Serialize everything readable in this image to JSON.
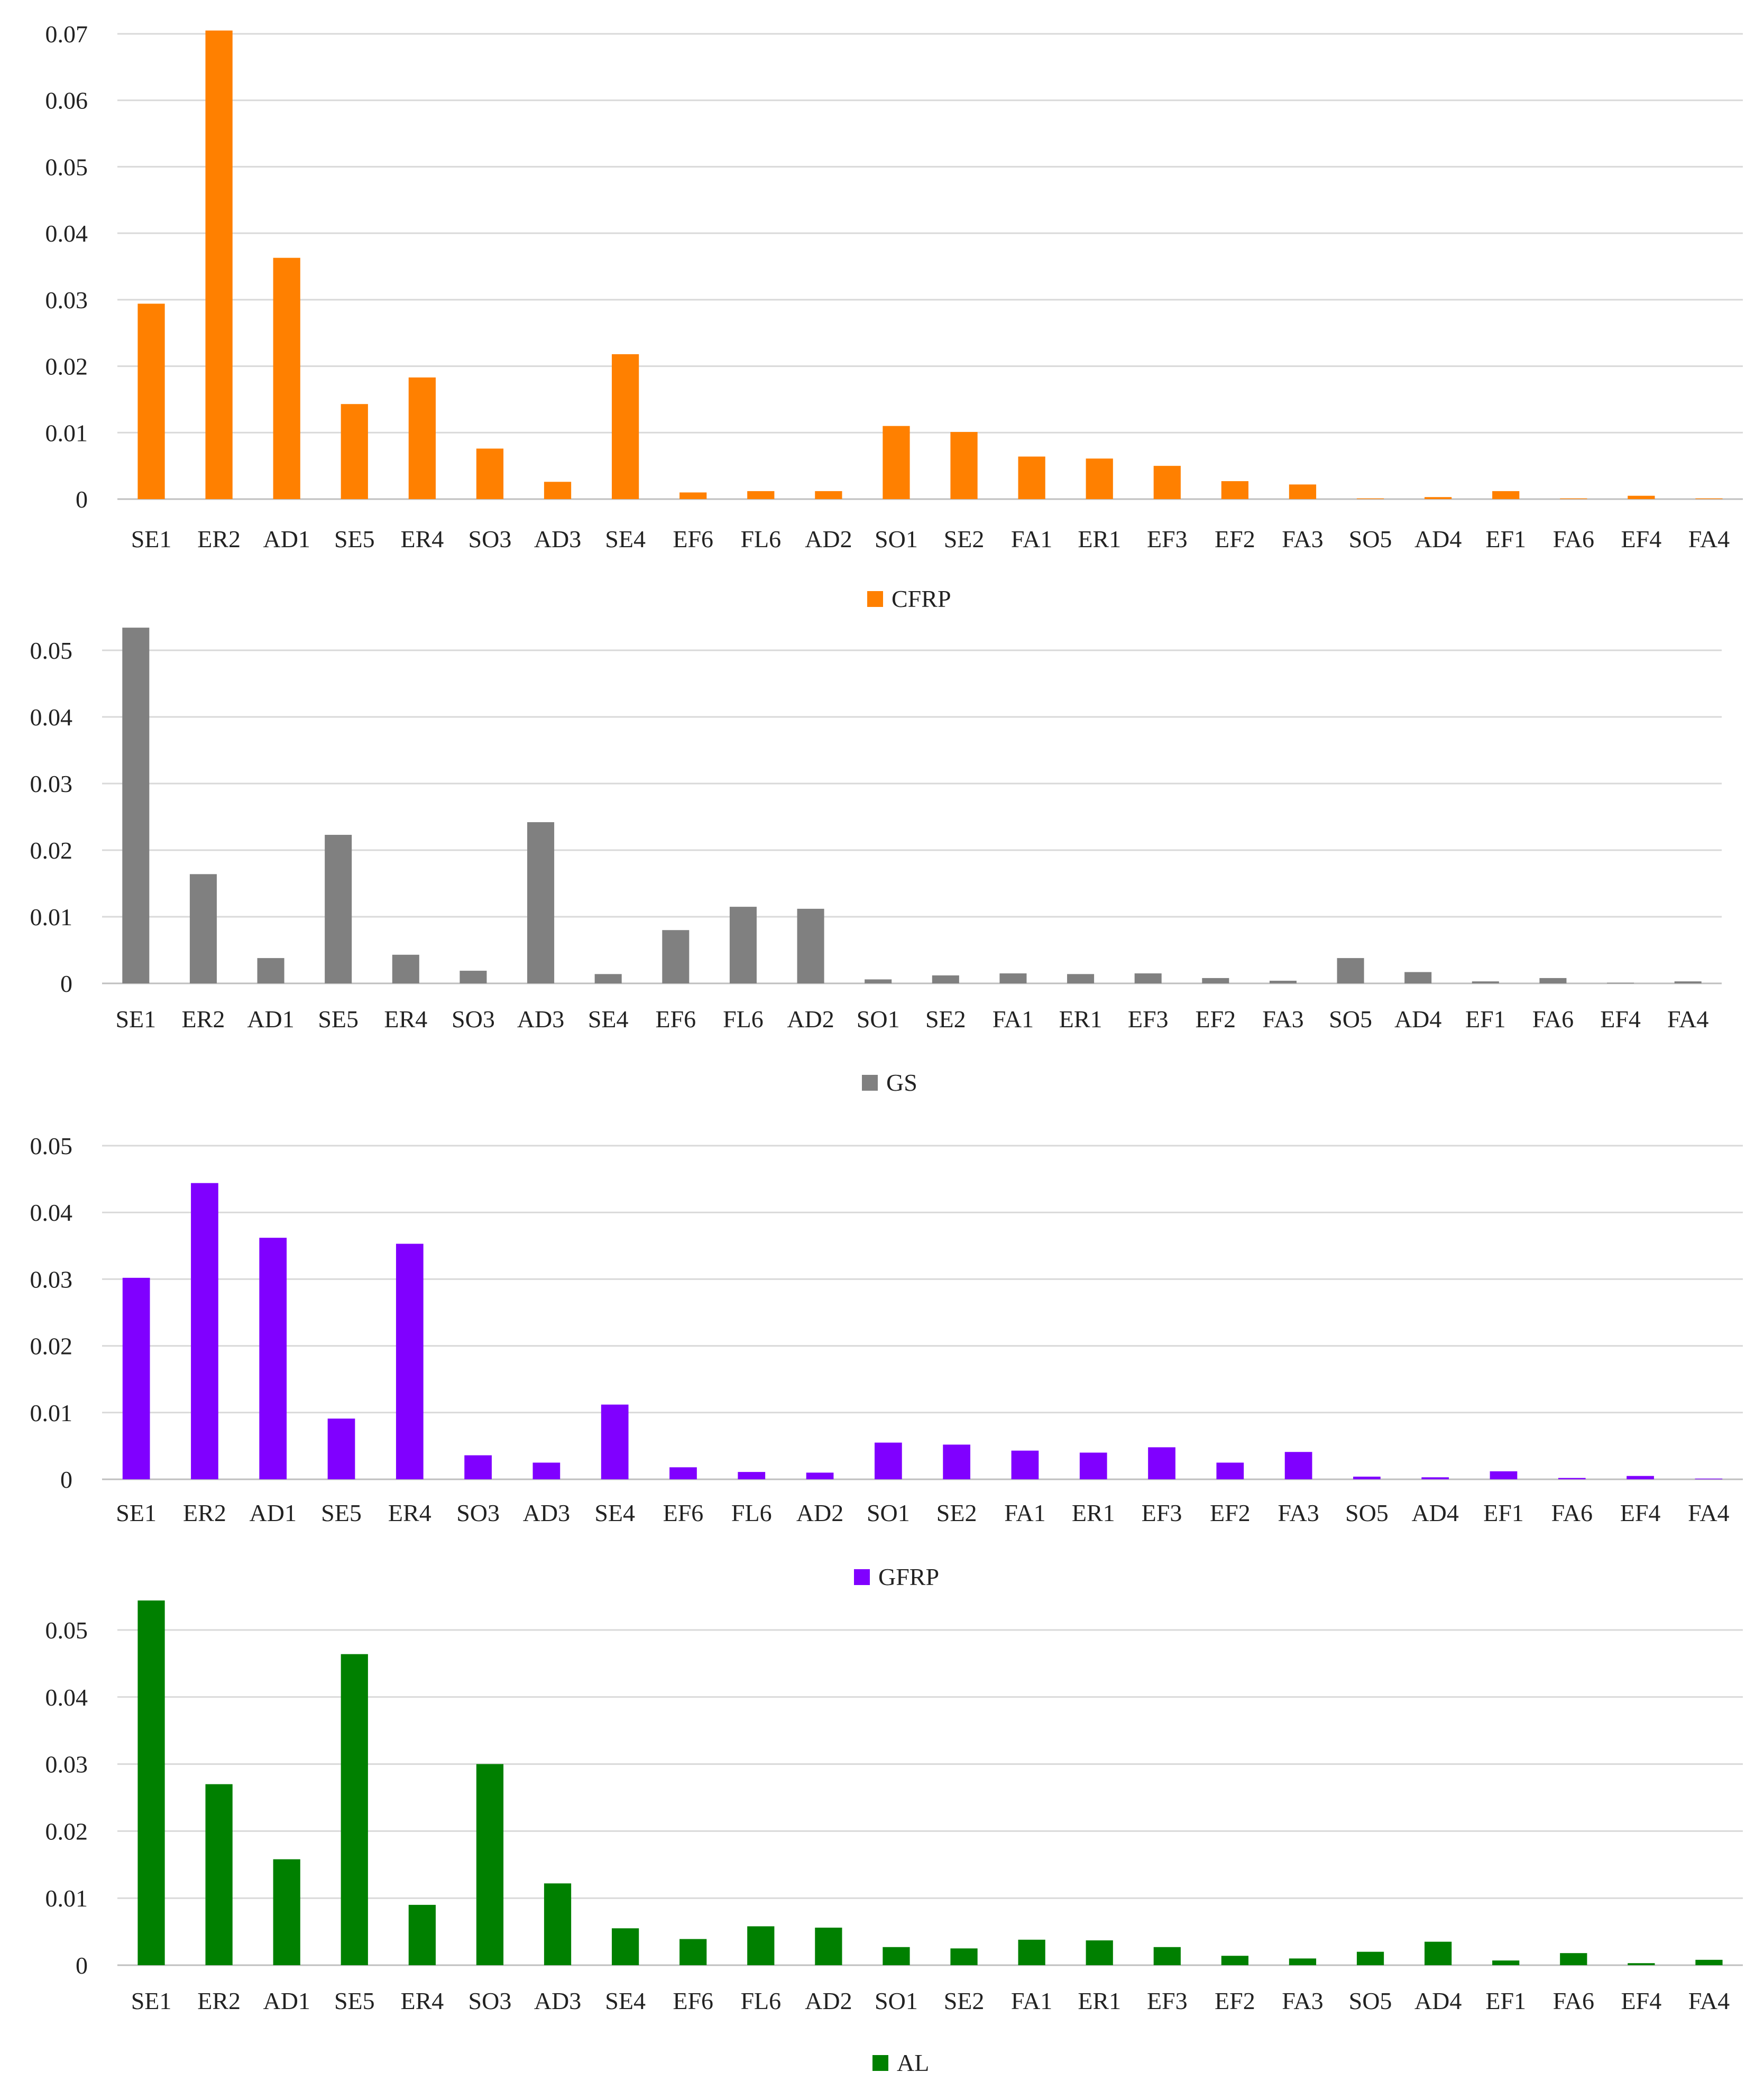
{
  "chart_data": [
    {
      "type": "bar",
      "title": "",
      "xlabel": "",
      "ylabel": "",
      "legend": "CFRP",
      "color": "#FF8000",
      "ylim": [
        0,
        0.07
      ],
      "yticks": [
        "0",
        "0.01",
        "0.02",
        "0.03",
        "0.04",
        "0.05",
        "0.06",
        "0.07"
      ],
      "categories": [
        "SE1",
        "ER2",
        "AD1",
        "SE5",
        "ER4",
        "SO3",
        "AD3",
        "SE4",
        "EF6",
        "FL6",
        "AD2",
        "SO1",
        "SE2",
        "FA1",
        "ER1",
        "EF3",
        "EF2",
        "FA3",
        "SO5",
        "AD4",
        "EF1",
        "FA6",
        "EF4",
        "FA4"
      ],
      "values": [
        0.0294,
        0.0705,
        0.0363,
        0.0143,
        0.0183,
        0.0076,
        0.0026,
        0.0218,
        0.001,
        0.0012,
        0.0012,
        0.011,
        0.0101,
        0.0064,
        0.0061,
        0.005,
        0.0027,
        0.0022,
        0.0001,
        0.0003,
        0.0012,
        0.0001,
        0.0005,
        0.0001
      ]
    },
    {
      "type": "bar",
      "title": "",
      "xlabel": "",
      "ylabel": "",
      "legend": "GS",
      "color": "#808080",
      "ylim": [
        0,
        0.05
      ],
      "yticks": [
        "0",
        "0.01",
        "0.02",
        "0.03",
        "0.04",
        "0.05"
      ],
      "categories": [
        "SE1",
        "ER2",
        "AD1",
        "SE5",
        "ER4",
        "SO3",
        "AD3",
        "SE4",
        "EF6",
        "FL6",
        "AD2",
        "SO1",
        "SE2",
        "FA1",
        "ER1",
        "EF3",
        "EF2",
        "FA3",
        "SO5",
        "AD4",
        "EF1",
        "FA6",
        "EF4",
        "FA4"
      ],
      "values": [
        0.0534,
        0.0164,
        0.0038,
        0.0223,
        0.0043,
        0.0019,
        0.0242,
        0.0014,
        0.008,
        0.0115,
        0.0112,
        0.0006,
        0.0012,
        0.0015,
        0.0014,
        0.0015,
        0.0008,
        0.0004,
        0.0038,
        0.0017,
        0.0003,
        0.0008,
        0.0001,
        0.0003
      ]
    },
    {
      "type": "bar",
      "title": "",
      "xlabel": "",
      "ylabel": "",
      "legend": "GFRP",
      "color": "#8000FF",
      "ylim": [
        0,
        0.05
      ],
      "yticks": [
        "0",
        "0.01",
        "0.02",
        "0.03",
        "0.04",
        "0.05"
      ],
      "categories": [
        "SE1",
        "ER2",
        "AD1",
        "SE5",
        "ER4",
        "SO3",
        "AD3",
        "SE4",
        "EF6",
        "FL6",
        "AD2",
        "SO1",
        "SE2",
        "FA1",
        "ER1",
        "EF3",
        "EF2",
        "FA3",
        "SO5",
        "AD4",
        "EF1",
        "FA6",
        "EF4",
        "FA4"
      ],
      "values": [
        0.0302,
        0.0444,
        0.0362,
        0.0091,
        0.0353,
        0.0036,
        0.0025,
        0.0112,
        0.0018,
        0.0011,
        0.001,
        0.0055,
        0.0052,
        0.0043,
        0.004,
        0.0048,
        0.0025,
        0.0041,
        0.0004,
        0.0003,
        0.0012,
        0.0002,
        0.0005,
        0.0001
      ]
    },
    {
      "type": "bar",
      "title": "",
      "xlabel": "",
      "ylabel": "",
      "legend": "AL",
      "color": "#008000",
      "ylim": [
        0,
        0.05
      ],
      "yticks": [
        "0",
        "0.01",
        "0.02",
        "0.03",
        "0.04",
        "0.05"
      ],
      "categories": [
        "SE1",
        "ER2",
        "AD1",
        "SE5",
        "ER4",
        "SO3",
        "AD3",
        "SE4",
        "EF6",
        "FL6",
        "AD2",
        "SO1",
        "SE2",
        "FA1",
        "ER1",
        "EF3",
        "EF2",
        "FA3",
        "SO5",
        "AD4",
        "EF1",
        "FA6",
        "EF4",
        "FA4"
      ],
      "values": [
        0.0544,
        0.027,
        0.0158,
        0.0464,
        0.009,
        0.03,
        0.0122,
        0.0055,
        0.0039,
        0.0058,
        0.0056,
        0.0027,
        0.0025,
        0.0038,
        0.0037,
        0.0027,
        0.0014,
        0.001,
        0.002,
        0.0035,
        0.0007,
        0.0018,
        0.0003,
        0.0008
      ]
    }
  ]
}
